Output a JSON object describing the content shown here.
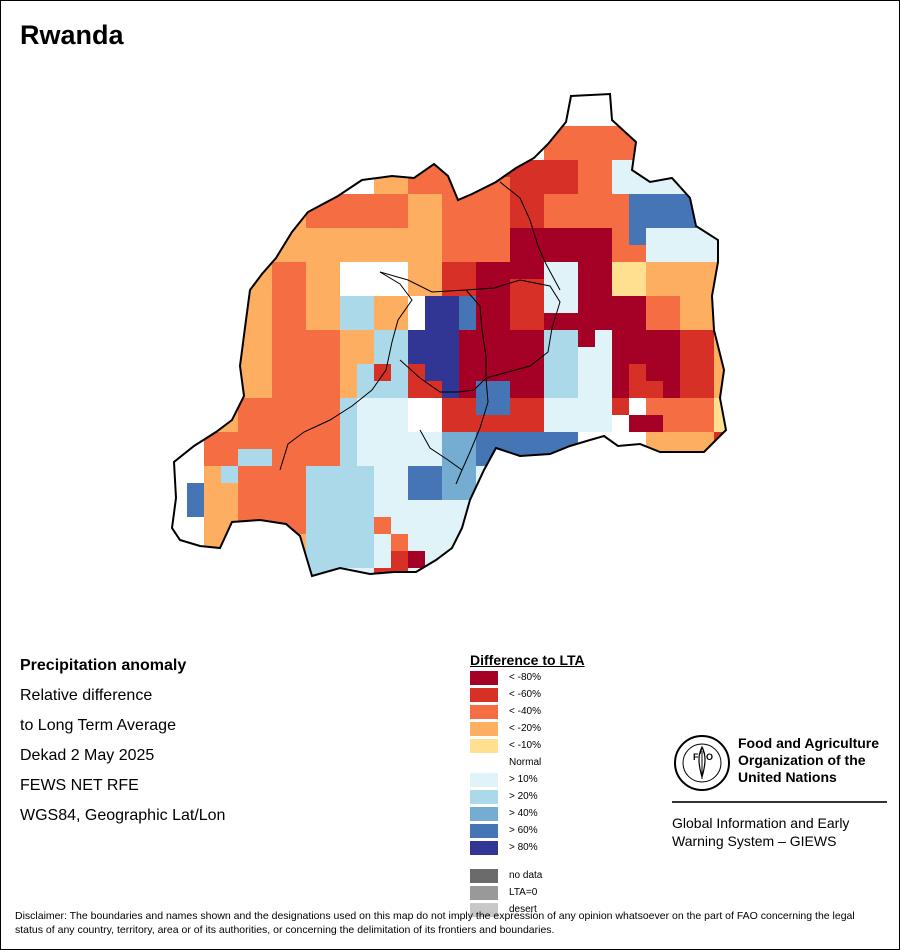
{
  "map": {
    "title": "Rwanda"
  },
  "info": {
    "heading": "Precipitation anomaly",
    "line1": "Relative difference",
    "line2": "to Long Term Average",
    "line3": "Dekad 2 May 2025",
    "line4": "FEWS NET RFE",
    "line5": "WGS84, Geographic Lat/Lon"
  },
  "legend": {
    "title": "Difference to LTA",
    "items": [
      {
        "label": "< -80%",
        "color": "#a50026"
      },
      {
        "label": "< -60%",
        "color": "#d73027"
      },
      {
        "label": "< -40%",
        "color": "#f46d43"
      },
      {
        "label": "< -20%",
        "color": "#fdae61"
      },
      {
        "label": "< -10%",
        "color": "#fee090"
      },
      {
        "label": "Normal",
        "color": "#ffffff"
      },
      {
        "label": "> 10%",
        "color": "#e0f3f8"
      },
      {
        "label": "> 20%",
        "color": "#abd9e9"
      },
      {
        "label": "> 40%",
        "color": "#74add1"
      },
      {
        "label": "> 60%",
        "color": "#4575b4"
      },
      {
        "label": "> 80%",
        "color": "#313695"
      }
    ],
    "extra": [
      {
        "label": "no data",
        "color": "#6b6b6b"
      },
      {
        "label": "LTA=0",
        "color": "#999999"
      },
      {
        "label": "desert",
        "color": "#c8c8c8"
      }
    ]
  },
  "fao": {
    "org_line1": "Food and Agriculture",
    "org_line2": "Organization of the",
    "org_line3": "United Nations",
    "logo_text": "FAO",
    "logo_motto": "FIAT PANIS",
    "system_line1": "Global Information and Early",
    "system_line2": "Warning System – GIEWS"
  },
  "disclaimer": "Disclaimer: The boundaries and names shown and the designations used on this map do not imply the expression of any opinion whatsoever on the part of FAO concerning the legal status of any country, territory, area or of its authorities, or concerning the delimitation of its frontiers and boundaries."
}
